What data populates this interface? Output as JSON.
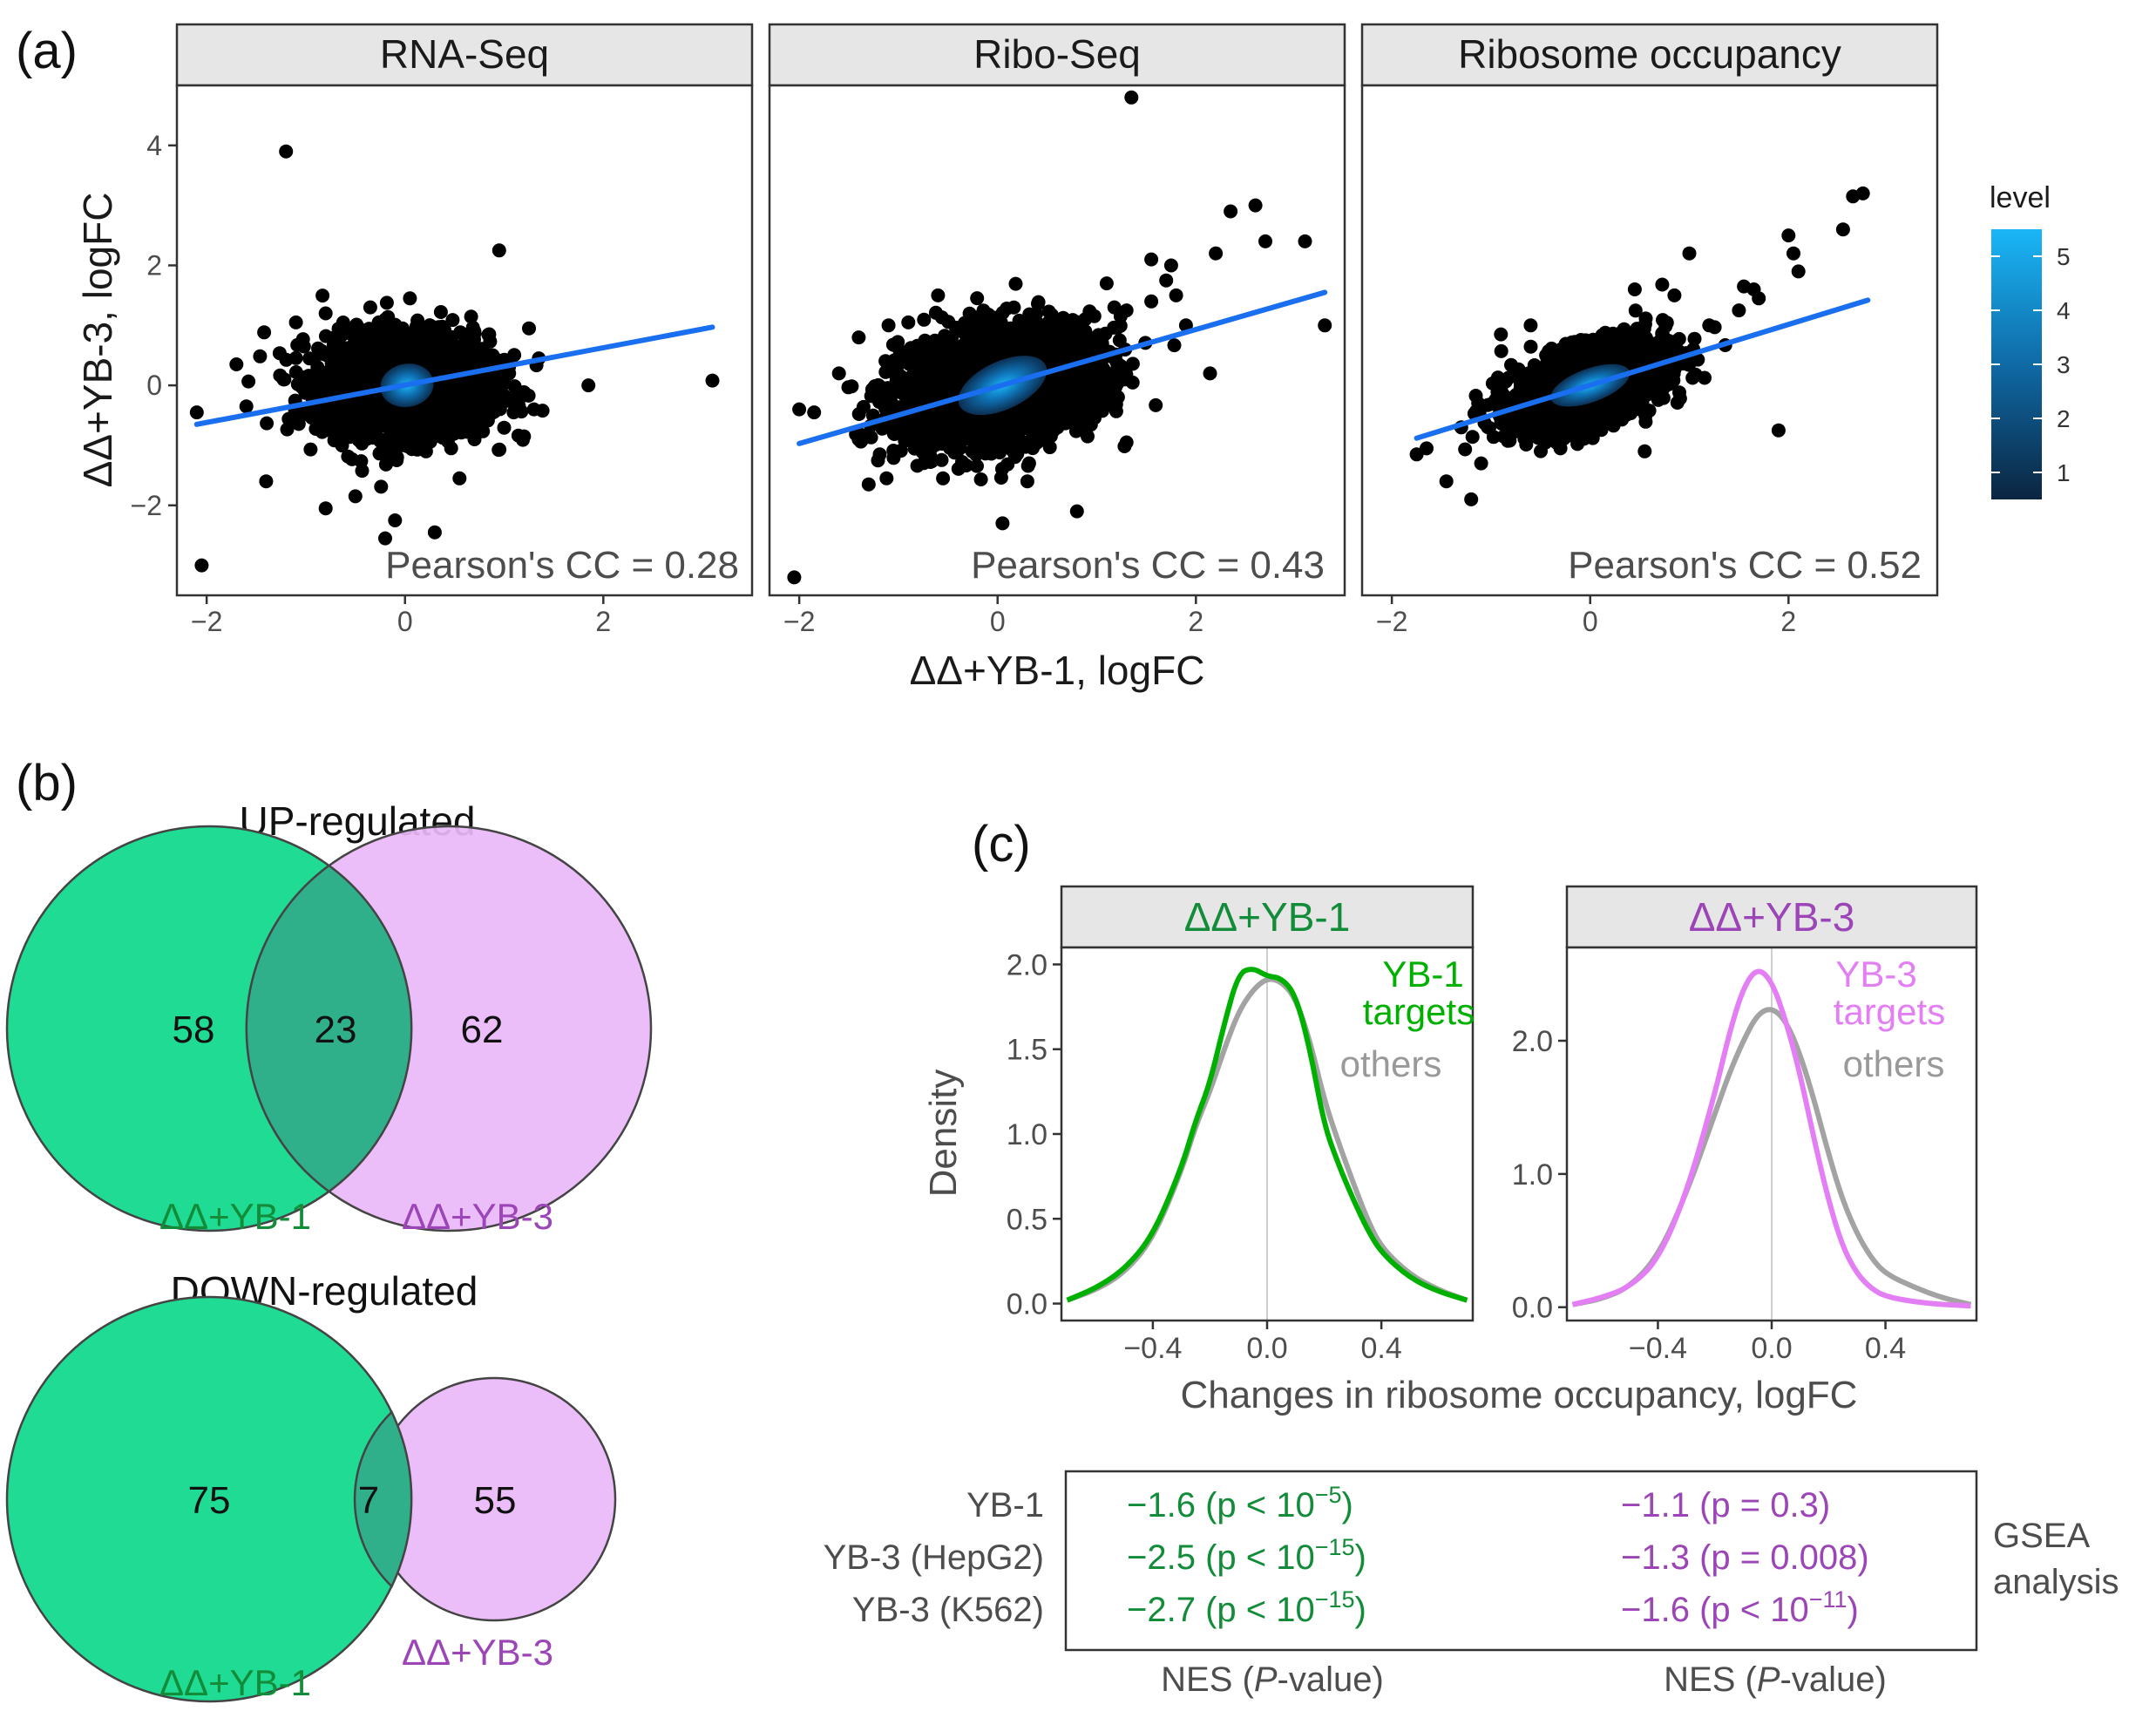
{
  "panel_labels": {
    "a": "(a)",
    "b": "(b)",
    "c": "(c)"
  },
  "colors": {
    "point": "#000000",
    "fit_line": "#1a6ff0",
    "strip_bg": "#e6e6e6",
    "frame": "#333333",
    "green": "#00b000",
    "green_text": "#138c3a",
    "violet": "#e37ef5",
    "violet_text": "#9b45b6",
    "gray": "#a3a3a3",
    "venn_green": "#1fdb93",
    "venn_violet": "#e9b9f8",
    "venn_overlap": "#2fb08a"
  },
  "chart_data": [
    {
      "type": "scatter",
      "id": "panel-a",
      "xlabel": "ΔΔ+YB-1, logFC",
      "ylabel": "ΔΔ+YB-3, logFC",
      "xlim": [
        -2.3,
        3.5
      ],
      "ylim": [
        -3.5,
        5.0
      ],
      "x_ticks": [
        -2,
        0,
        2
      ],
      "x_tick_labels": [
        "−2",
        "0",
        "2"
      ],
      "y_ticks": [
        -2,
        0,
        2,
        4
      ],
      "y_tick_labels": [
        "−2",
        "0",
        "2",
        "4"
      ],
      "legend": {
        "title": "level",
        "ticks": [
          1,
          2,
          3,
          4,
          5
        ],
        "tick_labels": [
          "1",
          "2",
          "3",
          "4",
          "5"
        ],
        "range": [
          0.5,
          5.5
        ],
        "color_low": "#0b2540",
        "color_high": "#1ab6f7",
        "position": "right"
      },
      "facets": [
        {
          "title": "RNA-Seq",
          "annotation": "Pearson's CC = 0.28",
          "fit": {
            "x": [
              -2.1,
              3.1
            ],
            "y": [
              -0.65,
              0.97
            ]
          },
          "cloud": {
            "cx": 0,
            "cy": 0,
            "sx": 0.42,
            "sy": 0.42,
            "n": 2200,
            "r": 0.0
          },
          "density": {
            "cx": 0.02,
            "cy": 0.0,
            "rx": 0.27,
            "ry": 0.36,
            "angle": 10
          },
          "outliers": [
            [
              -1.2,
              3.9
            ],
            [
              -2.05,
              -3.0
            ],
            [
              -2.1,
              -0.45
            ],
            [
              0.95,
              2.25
            ],
            [
              1.85,
              0.0
            ],
            [
              3.1,
              0.08
            ],
            [
              0.3,
              -2.45
            ],
            [
              -0.2,
              -2.55
            ],
            [
              -0.1,
              -2.25
            ],
            [
              -0.8,
              -2.05
            ],
            [
              -1.4,
              -1.6
            ],
            [
              -1.1,
              1.05
            ],
            [
              -0.8,
              1.2
            ],
            [
              0.7,
              0.9
            ],
            [
              1.3,
              -0.4
            ],
            [
              1.35,
              0.45
            ],
            [
              -0.35,
              1.3
            ],
            [
              1.2,
              -0.85
            ],
            [
              -1.6,
              -0.35
            ],
            [
              -1.7,
              0.35
            ],
            [
              0.05,
              1.45
            ],
            [
              0.55,
              -1.55
            ],
            [
              -0.5,
              -1.85
            ],
            [
              1.05,
              0.2
            ],
            [
              1.25,
              0.95
            ]
          ]
        },
        {
          "title": "Ribo-Seq",
          "annotation": "Pearson's CC = 0.43",
          "fit": {
            "x": [
              -2.0,
              3.3
            ],
            "y": [
              -0.97,
              1.55
            ]
          },
          "cloud": {
            "cx": 0,
            "cy": 0,
            "sx": 0.5,
            "sy": 0.48,
            "n": 2600,
            "r": 0.3
          },
          "density": {
            "cx": 0.05,
            "cy": 0.0,
            "rx": 0.48,
            "ry": 0.4,
            "angle": 25
          },
          "outliers": [
            [
              -2.05,
              -3.2
            ],
            [
              1.35,
              4.8
            ],
            [
              -2.0,
              -0.4
            ],
            [
              -1.85,
              -0.45
            ],
            [
              -1.4,
              0.8
            ],
            [
              0.05,
              -2.3
            ],
            [
              0.8,
              -2.1
            ],
            [
              3.3,
              1.0
            ],
            [
              2.6,
              3.0
            ],
            [
              2.35,
              2.9
            ],
            [
              3.1,
              2.4
            ],
            [
              2.2,
              2.2
            ],
            [
              2.7,
              2.4
            ],
            [
              1.55,
              2.1
            ],
            [
              1.75,
              2.0
            ],
            [
              1.7,
              1.75
            ],
            [
              1.8,
              1.5
            ],
            [
              1.9,
              1.0
            ],
            [
              1.3,
              -0.95
            ],
            [
              -1.3,
              -1.65
            ],
            [
              -1.1,
              1.0
            ],
            [
              -0.9,
              1.05
            ],
            [
              -0.6,
              1.5
            ],
            [
              1.1,
              1.7
            ],
            [
              -1.4,
              -0.9
            ],
            [
              -1.6,
              0.2
            ],
            [
              1.55,
              1.4
            ],
            [
              0.3,
              -1.6
            ],
            [
              -0.55,
              -1.55
            ],
            [
              1.3,
              1.25
            ]
          ]
        },
        {
          "title": "Ribosome occupancy",
          "annotation": "Pearson's CC = 0.52",
          "fit": {
            "x": [
              -1.75,
              2.8
            ],
            "y": [
              -0.88,
              1.42
            ]
          },
          "cloud": {
            "cx": 0,
            "cy": 0,
            "sx": 0.38,
            "sy": 0.36,
            "n": 2200,
            "r": 0.5
          },
          "density": {
            "cx": 0.0,
            "cy": 0.0,
            "rx": 0.42,
            "ry": 0.28,
            "angle": 20
          },
          "outliers": [
            [
              -1.75,
              -1.15
            ],
            [
              -1.2,
              -1.9
            ],
            [
              -1.45,
              -1.6
            ],
            [
              -1.65,
              -1.05
            ],
            [
              -1.3,
              -0.7
            ],
            [
              1.9,
              -0.75
            ],
            [
              1.0,
              2.2
            ],
            [
              2.65,
              3.15
            ],
            [
              2.75,
              3.2
            ],
            [
              2.55,
              2.6
            ],
            [
              2.0,
              2.5
            ],
            [
              2.05,
              2.2
            ],
            [
              2.1,
              1.9
            ],
            [
              1.65,
              1.6
            ],
            [
              1.7,
              1.45
            ],
            [
              1.5,
              1.25
            ],
            [
              -0.6,
              1.0
            ],
            [
              0.55,
              -1.1
            ],
            [
              -1.1,
              -1.3
            ],
            [
              1.2,
              1.0
            ],
            [
              0.85,
              1.5
            ],
            [
              -0.3,
              -1.05
            ],
            [
              1.55,
              1.65
            ],
            [
              -0.9,
              0.85
            ],
            [
              0.45,
              1.6
            ]
          ]
        }
      ]
    },
    {
      "type": "venn",
      "id": "panel-b",
      "sets": [
        {
          "title": "UP-regulated",
          "only_a": 58,
          "both": 23,
          "only_b": 62,
          "label_a": "ΔΔ+YB-1",
          "label_b": "ΔΔ+YB-3"
        },
        {
          "title": "DOWN-regulated",
          "only_a": 75,
          "both": 7,
          "only_b": 55,
          "label_a": "ΔΔ+YB-1",
          "label_b": "ΔΔ+YB-3"
        }
      ]
    },
    {
      "type": "line",
      "id": "panel-c",
      "xlabel": "Changes in ribosome occupancy, logFC",
      "ylabel": "Density",
      "x_ticks": [
        -0.4,
        0.0,
        0.4
      ],
      "x_tick_labels": [
        "−0.4",
        "0.0",
        "0.4"
      ],
      "facets": [
        {
          "title": "ΔΔ+YB-1",
          "title_color": "#138c3a",
          "xlim": [
            -0.72,
            0.72
          ],
          "ylim": [
            -0.1,
            2.1
          ],
          "y_ticks": [
            0.0,
            0.5,
            1.0,
            1.5,
            2.0
          ],
          "y_tick_labels": [
            "0.0",
            "0.5",
            "1.0",
            "1.5",
            "2.0"
          ],
          "legend": {
            "target_line1": "YB-1",
            "target_line2": "targets",
            "others": "others"
          },
          "series": [
            {
              "name": "others",
              "color": "#a3a3a3",
              "x": [
                -0.7,
                -0.6,
                -0.5,
                -0.4,
                -0.3,
                -0.25,
                -0.2,
                -0.15,
                -0.1,
                -0.05,
                0.0,
                0.05,
                0.1,
                0.15,
                0.2,
                0.25,
                0.3,
                0.35,
                0.4,
                0.5,
                0.6,
                0.7
              ],
              "values": [
                0.02,
                0.08,
                0.18,
                0.38,
                0.78,
                1.05,
                1.25,
                1.5,
                1.72,
                1.85,
                1.92,
                1.9,
                1.8,
                1.55,
                1.2,
                0.95,
                0.72,
                0.5,
                0.33,
                0.17,
                0.08,
                0.02
              ]
            },
            {
              "name": "YB-1 targets",
              "color": "#00b000",
              "x": [
                -0.7,
                -0.6,
                -0.5,
                -0.4,
                -0.3,
                -0.25,
                -0.2,
                -0.15,
                -0.1,
                -0.05,
                0.0,
                0.05,
                0.1,
                0.15,
                0.2,
                0.25,
                0.3,
                0.35,
                0.4,
                0.5,
                0.6,
                0.7
              ],
              "values": [
                0.02,
                0.09,
                0.2,
                0.4,
                0.8,
                1.08,
                1.3,
                1.65,
                1.95,
                1.98,
                1.93,
                1.92,
                1.82,
                1.5,
                1.05,
                0.82,
                0.62,
                0.44,
                0.3,
                0.15,
                0.07,
                0.02
              ]
            }
          ]
        },
        {
          "title": "ΔΔ+YB-3",
          "title_color": "#9b45b6",
          "xlim": [
            -0.72,
            0.72
          ],
          "ylim": [
            -0.1,
            2.7
          ],
          "y_ticks": [
            0.0,
            1.0,
            2.0
          ],
          "y_tick_labels": [
            "0.0",
            "1.0",
            "2.0"
          ],
          "legend": {
            "target_line1": "YB-3",
            "target_line2": "targets",
            "others": "others"
          },
          "series": [
            {
              "name": "others",
              "color": "#a3a3a3",
              "x": [
                -0.7,
                -0.6,
                -0.5,
                -0.4,
                -0.3,
                -0.2,
                -0.15,
                -0.1,
                -0.05,
                0.0,
                0.05,
                0.1,
                0.15,
                0.2,
                0.25,
                0.3,
                0.35,
                0.4,
                0.5,
                0.6,
                0.7
              ],
              "values": [
                0.02,
                0.06,
                0.15,
                0.38,
                0.85,
                1.45,
                1.75,
                2.0,
                2.2,
                2.25,
                2.15,
                1.9,
                1.55,
                1.15,
                0.8,
                0.55,
                0.37,
                0.25,
                0.15,
                0.07,
                0.02
              ]
            },
            {
              "name": "YB-3 targets",
              "color": "#e37ef5",
              "x": [
                -0.7,
                -0.6,
                -0.5,
                -0.4,
                -0.3,
                -0.2,
                -0.15,
                -0.1,
                -0.05,
                0.0,
                0.05,
                0.1,
                0.15,
                0.2,
                0.25,
                0.3,
                0.35,
                0.4,
                0.5,
                0.6,
                0.7
              ],
              "values": [
                0.02,
                0.07,
                0.15,
                0.35,
                0.85,
                1.6,
                2.05,
                2.4,
                2.55,
                2.45,
                2.15,
                1.75,
                1.25,
                0.8,
                0.45,
                0.25,
                0.14,
                0.08,
                0.04,
                0.02,
                0.01
              ]
            }
          ]
        }
      ]
    },
    {
      "type": "table",
      "id": "gsea-table",
      "row_labels": [
        "YB-1",
        "YB-3 (HepG2)",
        "YB-3 (K562)"
      ],
      "yb1": [
        {
          "value": "−1.6 (p < 10",
          "exp": "−5",
          "tail": ")"
        },
        {
          "value": "−2.5 (p < 10",
          "exp": "−15",
          "tail": ")"
        },
        {
          "value": "−2.7 (p < 10",
          "exp": "−15",
          "tail": ")"
        }
      ],
      "yb3": [
        {
          "value": "−1.1 (p = 0.3)",
          "exp": "",
          "tail": ""
        },
        {
          "value": "−1.3 (p = 0.008)",
          "exp": "",
          "tail": ""
        },
        {
          "value": "−1.6 (p < 10",
          "exp": "−11",
          "tail": ")"
        }
      ],
      "side_label": [
        "GSEA",
        "analysis"
      ],
      "col_footer": {
        "pre": "NES (",
        "italic": "P",
        "post": "-value)"
      }
    }
  ]
}
